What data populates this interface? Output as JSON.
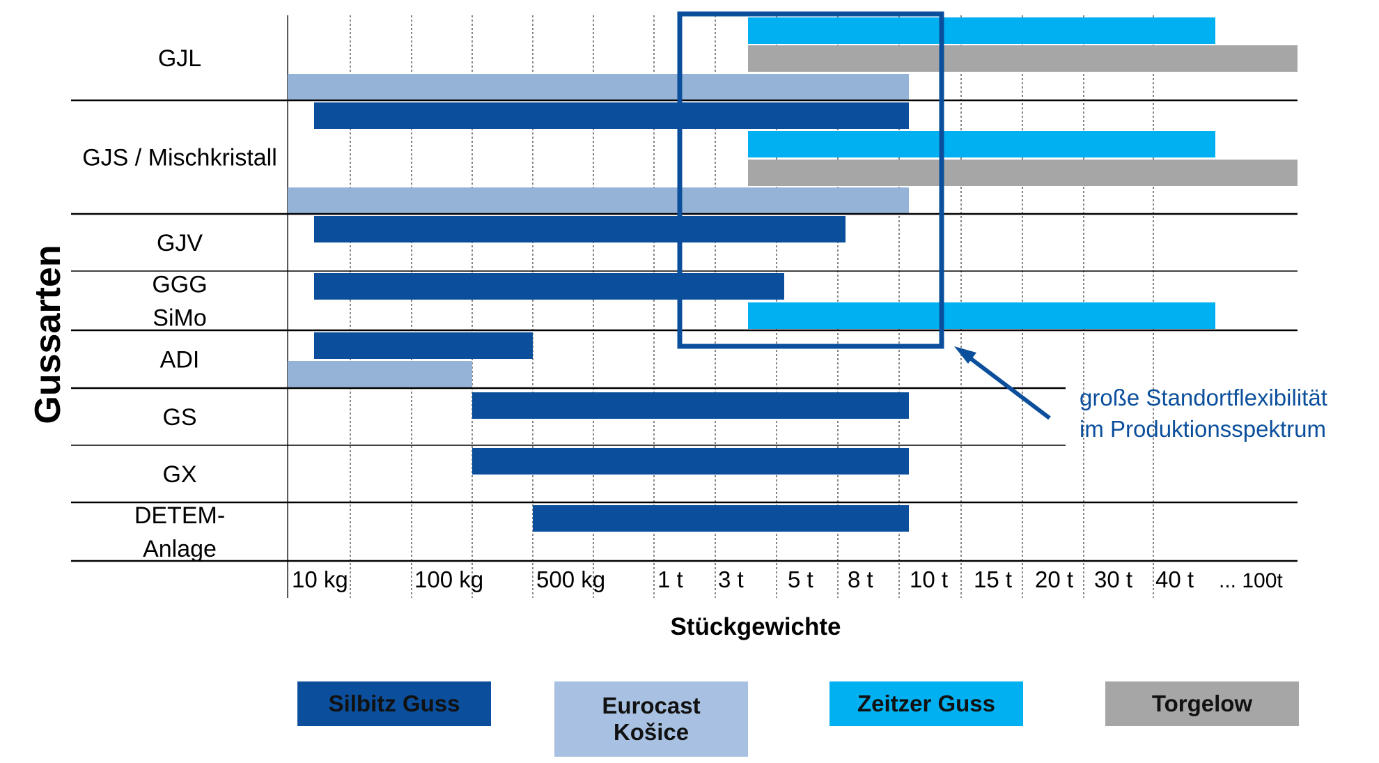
{
  "chart_data": {
    "type": "bar",
    "subtype": "horizontal-range",
    "ylabel": "Gussarten",
    "xlabel": "Stückgewichte",
    "x_ticks": [
      "10 kg",
      "100 kg",
      "500 kg",
      "1 t",
      "3 t",
      "5 t",
      "8 t",
      "10 t",
      "15 t",
      "20 t",
      "30 t",
      "40 t",
      "... 100t"
    ],
    "categories": [
      {
        "lines": [
          "GJL"
        ]
      },
      {
        "lines": [
          "GJS / Mischkristall"
        ]
      },
      {
        "lines": [
          "GJV"
        ]
      },
      {
        "lines": [
          "GGG",
          "SiMo"
        ]
      },
      {
        "lines": [
          "ADI"
        ]
      },
      {
        "lines": [
          "GS"
        ]
      },
      {
        "lines": [
          "GX"
        ]
      },
      {
        "lines": [
          "DETEM-",
          "Anlage"
        ]
      }
    ],
    "series": [
      {
        "name": "Silbitz Guss",
        "color": "#0B4F9C"
      },
      {
        "name": "Eurocast Košice",
        "name_lines": [
          "Eurocast",
          "Košice"
        ],
        "color": "#95B3D7"
      },
      {
        "name": "Zeitzer Guss",
        "color": "#00B0F0"
      },
      {
        "name": "Torgelow",
        "color": "#A6A6A6"
      }
    ],
    "ranges": [
      {
        "category": "GJL",
        "series": "Zeitzer Guss",
        "from": "3 t",
        "to": "40 t"
      },
      {
        "category": "GJL",
        "series": "Torgelow",
        "from": "3 t",
        "to": "... 100t"
      },
      {
        "category": "GJL",
        "series": "Eurocast Košice",
        "from": "< 10 kg",
        "to": "10 t"
      },
      {
        "category": "GJS / Mischkristall",
        "series": "Silbitz Guss",
        "from": "10 kg",
        "to": "10 t"
      },
      {
        "category": "GJS / Mischkristall",
        "series": "Zeitzer Guss",
        "from": "3 t",
        "to": "40 t"
      },
      {
        "category": "GJS / Mischkristall",
        "series": "Torgelow",
        "from": "3 t",
        "to": "... 100t"
      },
      {
        "category": "GJS / Mischkristall",
        "series": "Eurocast Košice",
        "from": "< 10 kg",
        "to": "10 t"
      },
      {
        "category": "GJV",
        "series": "Silbitz Guss",
        "from": "10 kg",
        "to": "8 t"
      },
      {
        "category": "GGG SiMo",
        "series": "Silbitz Guss",
        "from": "10 kg",
        "to": "5 t"
      },
      {
        "category": "GGG SiMo",
        "series": "Zeitzer Guss",
        "from": "3 t",
        "to": "40 t"
      },
      {
        "category": "ADI",
        "series": "Silbitz Guss",
        "from": "10 kg",
        "to": "500 kg"
      },
      {
        "category": "ADI",
        "series": "Eurocast Košice",
        "from": "< 10 kg",
        "to": "100 kg"
      },
      {
        "category": "GS",
        "series": "Silbitz Guss",
        "from": "100 kg",
        "to": "10 t"
      },
      {
        "category": "GX",
        "series": "Silbitz Guss",
        "from": "100 kg",
        "to": "10 t"
      },
      {
        "category": "DETEM-Anlage",
        "series": "Silbitz Guss",
        "from": "500 kg",
        "to": "10 t"
      }
    ],
    "highlight_range": {
      "from": "1 t",
      "to": "10 t"
    },
    "annotation": {
      "lines": [
        "große Standortflexibilität",
        "im Produktionsspektrum"
      ],
      "color": "#0B4F9C"
    },
    "grid": true
  }
}
